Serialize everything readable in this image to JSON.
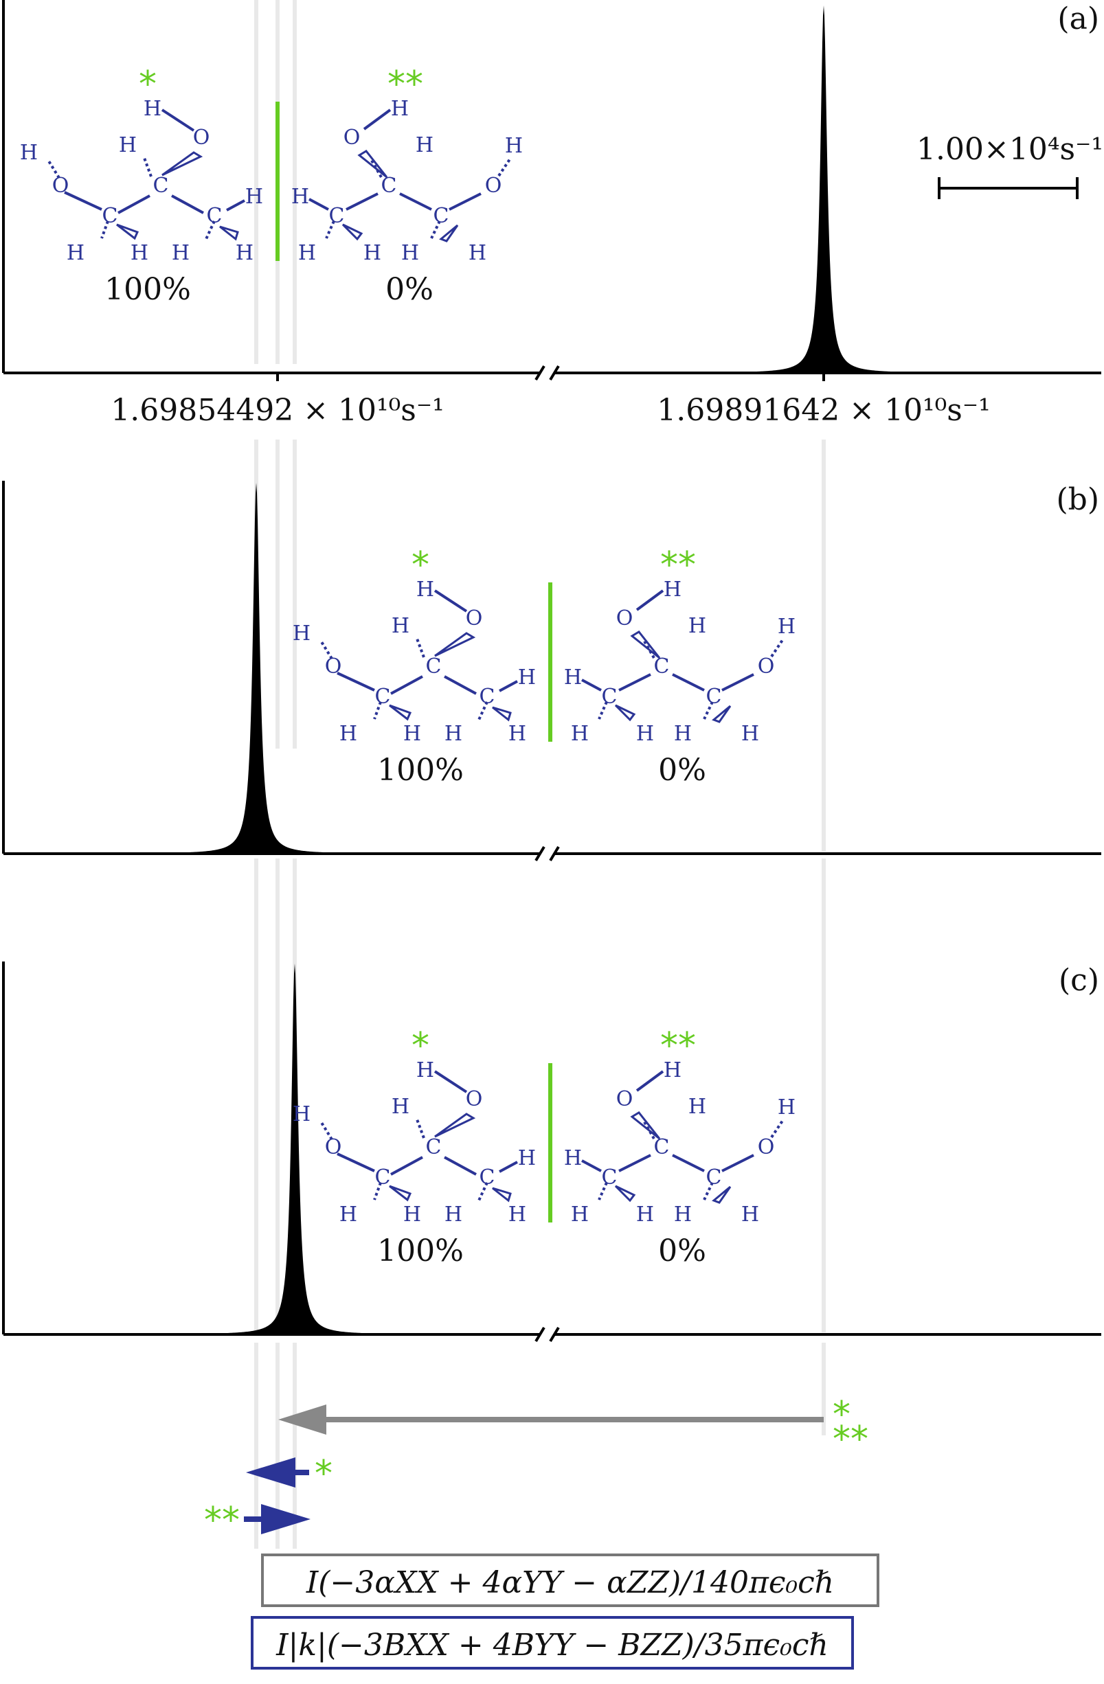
{
  "chart_data": [
    {
      "type": "line",
      "panel_label": "(a)",
      "x_axis": {
        "tick_labels": [
          "1.69854492 × 10¹⁰s⁻¹",
          "1.69891642 × 10¹⁰s⁻¹"
        ],
        "ticks": [
          16985449200.0,
          16989164200.0
        ],
        "broken": true
      },
      "scale_bar": "1.00×10⁴s⁻¹",
      "peak": {
        "frequency": 16989164200.0
      },
      "enantiomers": [
        {
          "percent": "100%",
          "marker": "*"
        },
        {
          "percent": "0%",
          "marker": "**"
        }
      ]
    },
    {
      "type": "line",
      "panel_label": "(b)",
      "peak": {
        "position": "left of 1.69854492 × 10¹⁰s⁻¹"
      },
      "enantiomers": [
        {
          "percent": "100%",
          "marker": "*"
        },
        {
          "percent": "0%",
          "marker": "**"
        }
      ]
    },
    {
      "type": "line",
      "panel_label": "(c)",
      "peak": {
        "position": "right of 1.69854492 × 10¹⁰s⁻¹"
      },
      "enantiomers": [
        {
          "percent": "100%",
          "marker": "*"
        },
        {
          "percent": "0%",
          "marker": "**"
        }
      ]
    }
  ],
  "labels": {
    "panel_a": "(a)",
    "panel_b": "(b)",
    "panel_c": "(c)",
    "tick_left": "1.69854492 × 10¹⁰s⁻¹",
    "tick_right": "1.69891642 × 10¹⁰s⁻¹",
    "scale_bar": "1.00×10⁴s⁻¹",
    "pct_100": "100%",
    "pct_0": "0%",
    "star_one": "*",
    "star_two": "**",
    "atom_H": "H",
    "atom_C": "C",
    "atom_O": "O"
  },
  "legend": {
    "gray_arrow_markers": [
      "*",
      "**"
    ],
    "blue_arrow_left_marker": "*",
    "blue_arrow_right_marker": "**",
    "formula_gray": "I(−3αXX + 4αYY − αZZ)/140πϵ₀cℏ",
    "formula_blue": "I|k|(−3BXX + 4BYY − BZZ)/35πϵ₀cℏ"
  },
  "colors": {
    "molecule": "#2b3496",
    "marker": "#66cc22",
    "gray_arrow": "#888888",
    "blue_arrow": "#2b3496",
    "guide": "#e6e6e6",
    "peak": "#000000"
  }
}
